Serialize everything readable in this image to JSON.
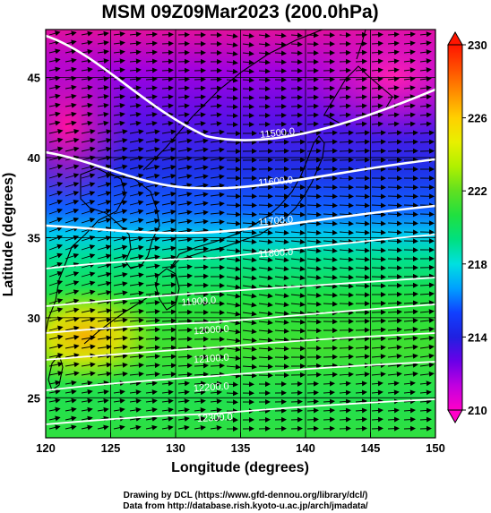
{
  "title": "MSM 09Z09Mar2023 (200.0hPa)",
  "x_axis": {
    "label": "Longitude (degrees)",
    "range": [
      120,
      150
    ],
    "ticks": [
      "120",
      "125",
      "130",
      "135",
      "140",
      "145",
      "150"
    ]
  },
  "y_axis": {
    "label": "Latitude  (degrees)",
    "range": [
      22.5,
      48
    ],
    "ticks": [
      "25",
      "30",
      "35",
      "40",
      "45"
    ]
  },
  "colorbar": {
    "range": [
      210,
      230
    ],
    "ticks": [
      "210",
      "214",
      "218",
      "222",
      "226",
      "230"
    ],
    "colors": [
      "#ff00c8",
      "#c000e0",
      "#6a00e8",
      "#2020e0",
      "#1040ff",
      "#00a0ff",
      "#00e0e0",
      "#00e080",
      "#20e040",
      "#60e020",
      "#b0f000",
      "#e8f000",
      "#ffd000",
      "#ff9000",
      "#ff5000",
      "#ff1500"
    ]
  },
  "contours": [
    {
      "label": "11500.0"
    },
    {
      "label": "11600.0"
    },
    {
      "label": "11700.0"
    },
    {
      "label": "11800.0"
    },
    {
      "label": "11900.0"
    },
    {
      "label": "12000.0"
    },
    {
      "label": "12100.0"
    },
    {
      "label": "12200.0"
    },
    {
      "label": "12300.0"
    }
  ],
  "credits": {
    "line1": "Drawing by DCL (https://www.gfd-dennou.org/library/dcl/)",
    "line2": "Data from http://database.rish.kyoto-u.ac.jp/arch/jmadata/"
  }
}
